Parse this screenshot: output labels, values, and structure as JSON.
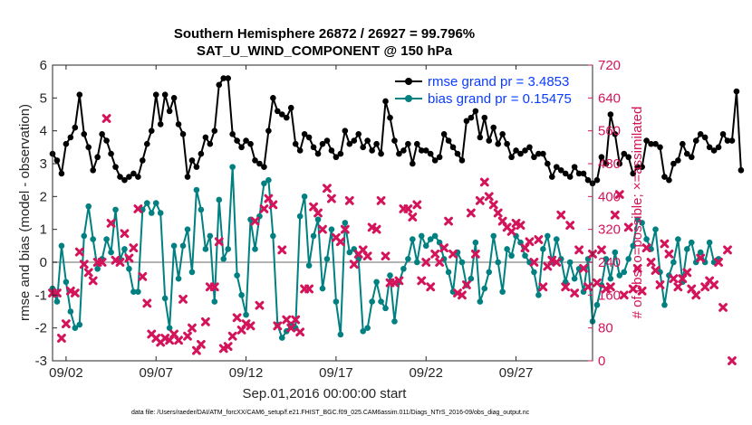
{
  "colors": {
    "rmse": "#000000",
    "bias": "#008080",
    "obs": "#d4145a",
    "zero_line": "#b3b3b3",
    "legend_text": "#0a3cff"
  },
  "chart_data": {
    "type": "line",
    "title": "Southern Hemisphere 26872 / 26927 = 99.796%",
    "subtitle": "SAT_U_WIND_COMPONENT @ 150 hPa",
    "xlabel": "Sep.01,2016 00:00:00 start",
    "ylabel": "rmse and bias (model - observation)",
    "ylabel_right": "# of obs: o=possible; ×=assimilated",
    "footer": "data file: /Users/raeder/DAI/ATM_forcXX/CAM6_setup/f.e21.FHIST_BGC.f09_025.CAM6assim.011/Diags_NTrS_2016-09/obs_diag_output.nc",
    "x_range_days": [
      0.25,
      30.25
    ],
    "ylim": [
      -3,
      6
    ],
    "ylim_right": [
      0,
      720
    ],
    "x_ticks": [
      {
        "day": 1,
        "label": "09/02"
      },
      {
        "day": 6,
        "label": "09/07"
      },
      {
        "day": 11,
        "label": "09/12"
      },
      {
        "day": 16,
        "label": "09/17"
      },
      {
        "day": 21,
        "label": "09/22"
      },
      {
        "day": 26,
        "label": "09/27"
      }
    ],
    "y_ticks": [
      "-3",
      "-2",
      "-1",
      "0",
      "1",
      "2",
      "3",
      "4",
      "5",
      "6"
    ],
    "y_ticks_right": [
      "0",
      "80",
      "160",
      "240",
      "320",
      "400",
      "480",
      "560",
      "640",
      "720"
    ],
    "legend": {
      "placement": "top-right",
      "entries": [
        "rmse grand pr = 3.4853",
        "bias grand pr = 0.15475"
      ]
    },
    "time_step_days": 0.25,
    "time_start_day": 0.25,
    "series": [
      {
        "name": "rmse grand pr = 3.4853",
        "axis": "left",
        "values": [
          3.3,
          3.1,
          2.7,
          3.6,
          3.8,
          4.1,
          5.1,
          3.9,
          3.5,
          2.8,
          3.2,
          3.9,
          3.7,
          3.3,
          2.9,
          2.6,
          2.5,
          2.6,
          2.7,
          2.6,
          3.1,
          3.6,
          4.0,
          5.1,
          4.2,
          5.1,
          4.6,
          5.0,
          4.2,
          3.9,
          2.6,
          3.1,
          2.9,
          3.3,
          3.8,
          3.6,
          4.0,
          5.4,
          5.6,
          5.6,
          3.9,
          3.7,
          3.5,
          3.7,
          3.6,
          3.1,
          3.0,
          2.9,
          4.0,
          5.0,
          4.6,
          4.5,
          4.4,
          4.7,
          3.6,
          3.4,
          3.9,
          3.8,
          3.5,
          3.3,
          3.6,
          3.7,
          3.4,
          3.2,
          3.3,
          4.0,
          3.6,
          3.7,
          3.9,
          3.5,
          3.7,
          3.4,
          3.6,
          3.3,
          4.9,
          4.4,
          3.7,
          3.3,
          3.4,
          3.6,
          3.0,
          3.6,
          3.4,
          3.4,
          3.3,
          3.1,
          3.2,
          3.9,
          3.7,
          3.5,
          3.3,
          3.1,
          4.3,
          4.4,
          4.6,
          3.8,
          4.4,
          3.7,
          4.1,
          3.6,
          3.9,
          3.6,
          3.2,
          3.4,
          3.3,
          3.4,
          3.5,
          3.2,
          3.3,
          3.3,
          3.0,
          2.6,
          2.9,
          2.8,
          2.7,
          2.6,
          2.9,
          2.7,
          2.7,
          2.5,
          2.4,
          2.5,
          3.2,
          3.0,
          4.5,
          3.9,
          3.0,
          3.3,
          3.2,
          2.7,
          2.9,
          2.9,
          3.7,
          3.6,
          3.6,
          3.5,
          2.6,
          2.5,
          3.0,
          3.1,
          3.6,
          3.3,
          3.2,
          3.7,
          3.9,
          3.8,
          3.5,
          3.4,
          3.5,
          3.9,
          3.7,
          3.7,
          5.2,
          2.8
        ],
        "color": "#000000"
      },
      {
        "name": "bias grand pr = 0.15475",
        "axis": "left",
        "values": [
          -0.8,
          -1.2,
          0.5,
          -0.6,
          -1.5,
          -2.0,
          -1.9,
          0.8,
          1.7,
          0.7,
          -0.2,
          0.1,
          0.7,
          0.3,
          1.6,
          0.1,
          0.4,
          -0.2,
          -0.9,
          -0.9,
          1.6,
          1.8,
          1.5,
          1.8,
          1.5,
          -1.1,
          -2.0,
          0.5,
          -0.5,
          0.5,
          1.0,
          -0.3,
          2.2,
          1.6,
          0.4,
          0.8,
          -1.2,
          1.9,
          0.1,
          0.4,
          2.9,
          -0.4,
          -1.0,
          -1.6,
          1.3,
          0.4,
          1.4,
          2.4,
          2.5,
          0.8,
          -1.9,
          -2.3,
          -2.1,
          -1.9,
          -2.0,
          1.4,
          2.0,
          -0.1,
          0.8,
          1.3,
          -0.8,
          0.1,
          1.0,
          -1.2,
          -2.2,
          1.2,
          0.3,
          0.4,
          0.1,
          -2.1,
          -2.0,
          -1.2,
          -0.6,
          -1.2,
          -1.4,
          -0.4,
          -1.8,
          -0.6,
          -0.2,
          0.1,
          0.7,
          0.0,
          0.8,
          0.5,
          0.7,
          0.8,
          0.6,
          0.1,
          -0.3,
          -0.9,
          0.3,
          0.0,
          -0.7,
          -0.5,
          0.6,
          -1.2,
          -0.8,
          -0.3,
          0.8,
          0.0,
          -0.9,
          0.4,
          0.2,
          0.8,
          0.6,
          0.2,
          0.0,
          -0.3,
          -1.0,
          0.4,
          0.8,
          0.0,
          0.7,
          0.1,
          -0.6,
          0.0,
          -0.5,
          -0.2,
          -0.9,
          0.1,
          -1.8,
          -1.3,
          -0.7,
          0.1,
          -0.5,
          0.3,
          -0.4,
          -0.3,
          0.1,
          0.5,
          1.3,
          1.2,
          0.7,
          0.4,
          1.0,
          -0.3,
          -1.3,
          -0.4,
          0.0,
          0.7,
          -0.6,
          0.4,
          0.6,
          0.0,
          0.3,
          0.0,
          0.6,
          0.0,
          0.1
        ],
        "color": "#008080"
      },
      {
        "name": "",
        "axis": "right",
        "marker": "x",
        "values": [
          165,
          165,
          55,
          90,
          170,
          165,
          265,
          235,
          215,
          195,
          240,
          240,
          590,
          335,
          245,
          240,
          310,
          250,
          275,
          370,
          205,
          140,
          65,
          55,
          45,
          55,
          50,
          65,
          50,
          150,
          60,
          80,
          25,
          40,
          95,
          180,
          180,
          290,
          30,
          35,
          60,
          105,
          75,
          90,
          85,
          340,
          135,
          370,
          395,
          380,
          85,
          270,
          100,
          80,
          100,
          70,
          175,
          175,
          375,
          360,
          320,
          420,
          395,
          300,
          290,
          320,
          390,
          235,
          260,
          270,
          255,
          325,
          320,
          390,
          255,
          190,
          190,
          195,
          370,
          370,
          350,
          380,
          195,
          240,
          180,
          260,
          240,
          275,
          340,
          260,
          165,
          160,
          185,
          360,
          260,
          390,
          435,
          400,
          380,
          360,
          340,
          325,
          315,
          335,
          330,
          275,
          290,
          240,
          295,
          180,
          230,
          245,
          240,
          355,
          180,
          330,
          165,
          270,
          225,
          180,
          260,
          190,
          270,
          175,
          180,
          355,
          405,
          160,
          325,
          175,
          225,
          170,
          275,
          240,
          220,
          185,
          285,
          260,
          200,
          180,
          200,
          215,
          175,
          160,
          250,
          180,
          195,
          185,
          240,
          130,
          270,
          0
        ],
        "color": "#d4145a"
      }
    ]
  }
}
